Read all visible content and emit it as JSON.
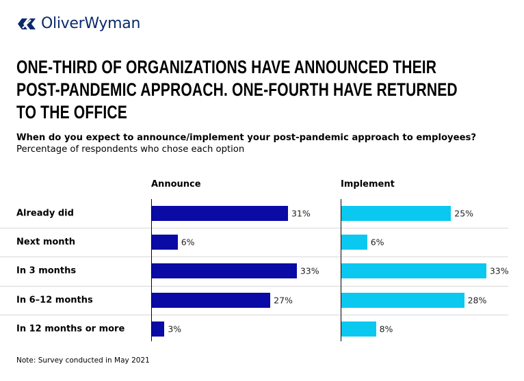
{
  "brand": {
    "name": "OliverWyman",
    "color": "#0a2a6b"
  },
  "title_lines": [
    "ONE-THIRD OF ORGANIZATIONS HAVE ANNOUNCED THEIR",
    "POST-PANDEMIC APPROACH. ONE-FOURTH HAVE RETURNED",
    "TO THE OFFICE"
  ],
  "question": "When do you expect to announce/implement your post-pandemic approach to employees?",
  "subtitle": "Percentage of respondents who chose each option",
  "note": "Note: Survey conducted in May 2021",
  "chart_data": {
    "type": "bar",
    "orientation": "horizontal",
    "categories": [
      "Already did",
      "Next month",
      "In 3 months",
      "In 6–12 months",
      "In 12 months or more"
    ],
    "series": [
      {
        "name": "Announce",
        "color": "#0a0aa5",
        "values": [
          31,
          6,
          33,
          27,
          3
        ],
        "labels": [
          "31%",
          "6%",
          "33%",
          "27%",
          "3%"
        ]
      },
      {
        "name": "Implement",
        "color": "#0bc8f0",
        "values": [
          25,
          6,
          33,
          28,
          8
        ],
        "labels": [
          "25%",
          "6%",
          "33%",
          "28%",
          "8%"
        ]
      }
    ],
    "unit": "%"
  }
}
